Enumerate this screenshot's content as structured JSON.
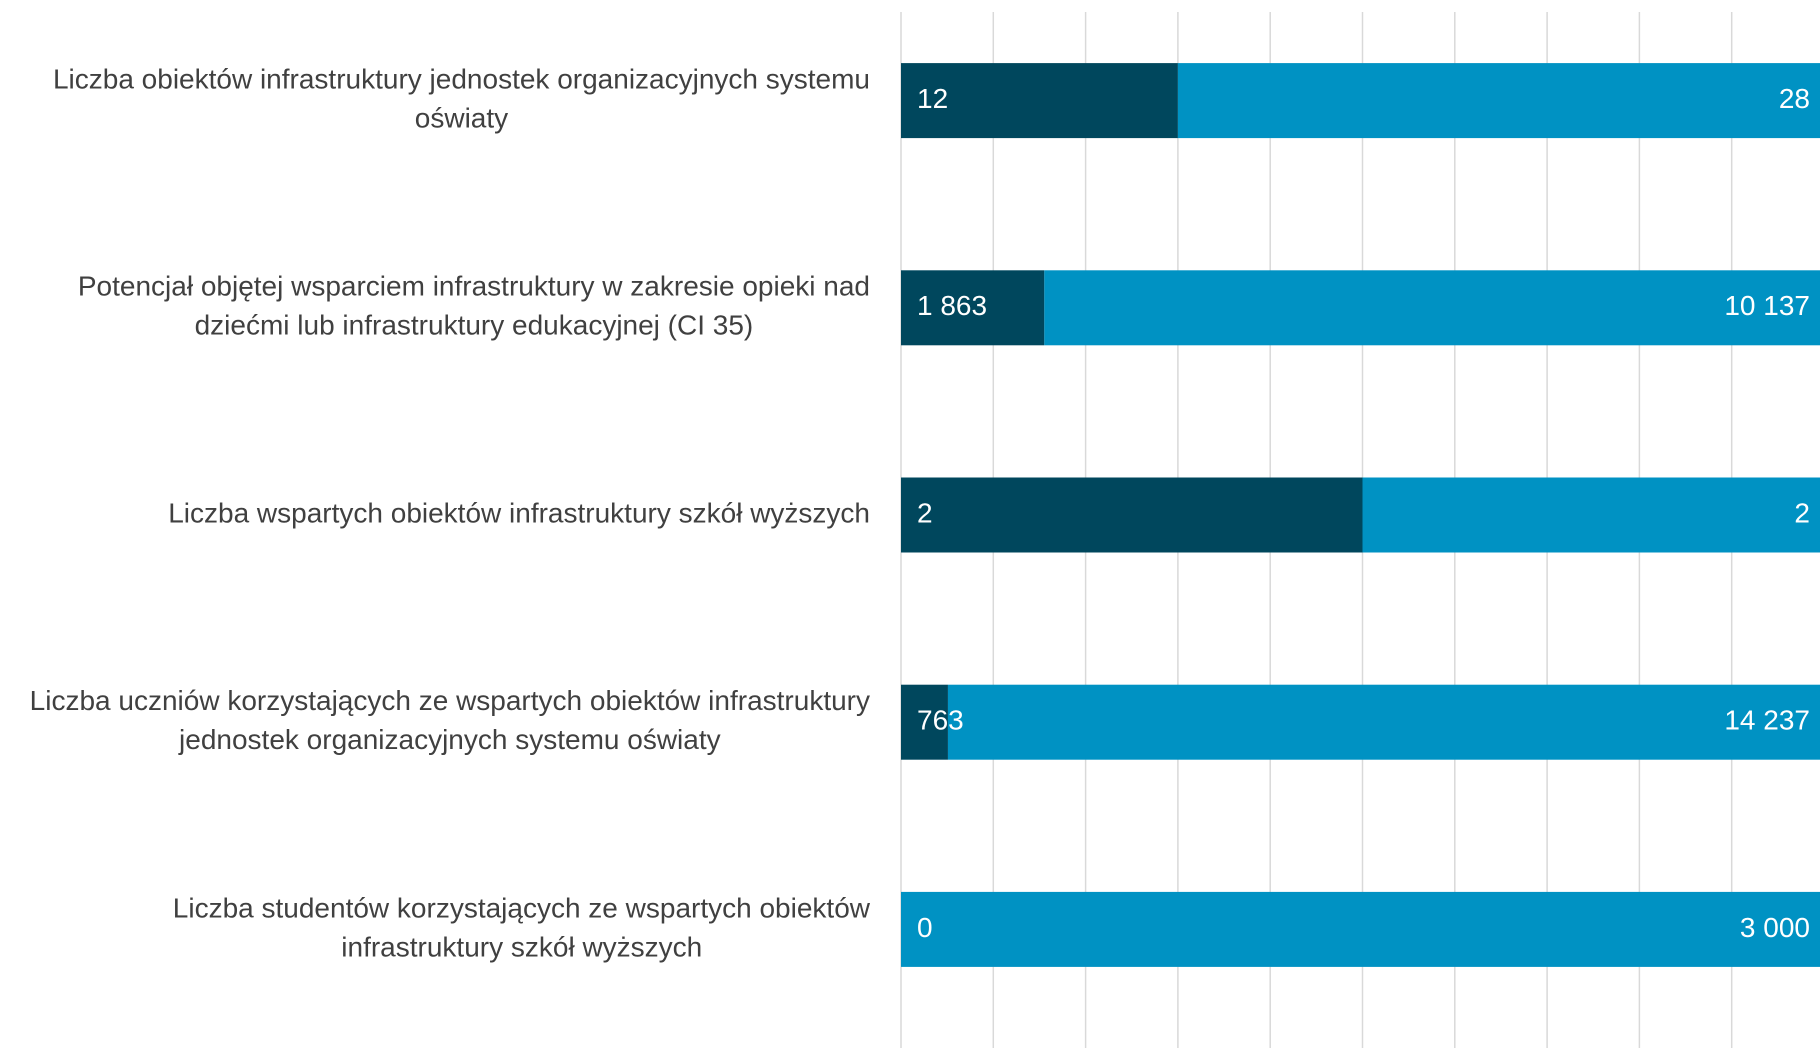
{
  "chart_data": {
    "type": "bar",
    "orientation": "horizontal",
    "stacked": "percent",
    "categories": [
      [
        "Liczba obiektów infrastruktury jednostek organizacyjnych systemu",
        "oświaty"
      ],
      [
        "Potencjał objętej wsparciem infrastruktury w zakresie opieki nad",
        "dziećmi lub infrastruktury edukacyjnej (CI 35)"
      ],
      [
        "Liczba wspartych obiektów infrastruktury szkół wyższych"
      ],
      [
        "Liczba uczniów korzystających ze wspartych obiektów infrastruktury",
        "jednostek organizacyjnych systemu oświaty"
      ],
      [
        "Liczba studentów korzystających ze wspartych obiektów",
        "infrastruktury szkół wyższych"
      ]
    ],
    "series": [
      {
        "color": "#00475d",
        "values": [
          12,
          1863,
          2,
          763,
          0
        ],
        "value_labels": [
          "12",
          "1 863",
          "2",
          "763",
          "0"
        ]
      },
      {
        "color": "#0092c3",
        "values": [
          28,
          10137,
          2,
          14237,
          3000
        ],
        "value_labels": [
          "28",
          "10 137",
          "2",
          "14 237",
          "3 000"
        ]
      }
    ],
    "xlim": [
      0,
      100
    ],
    "xticks": [
      0,
      10,
      20,
      30,
      40,
      50,
      60,
      70,
      80,
      90,
      100
    ],
    "grid": true
  }
}
